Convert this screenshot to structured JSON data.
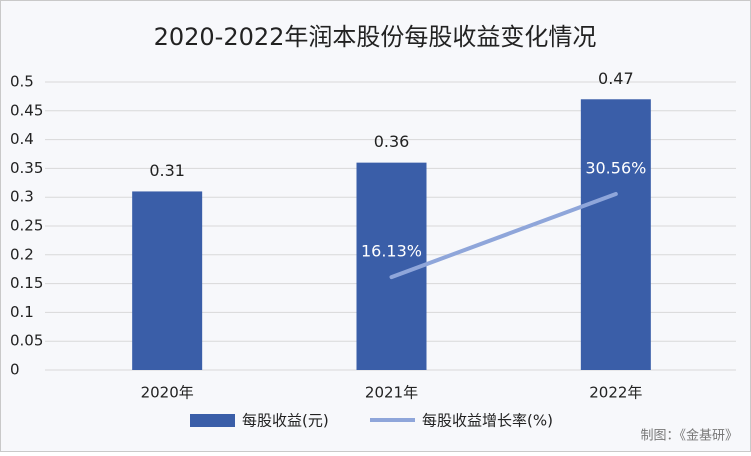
{
  "chart_data": {
    "type": "bar_line",
    "title": "2020-2022年润本股份每股收益变化情况",
    "categories": [
      "2020年",
      "2021年",
      "2022年"
    ],
    "series": [
      {
        "name": "每股收益(元)",
        "type": "bar",
        "color": "#3a5ea8",
        "values": [
          0.31,
          0.36,
          0.47
        ]
      },
      {
        "name": "每股收益增长率(%)",
        "type": "line",
        "axis": "y2",
        "color": "#8fa6da",
        "values": [
          null,
          16.13,
          30.56
        ],
        "value_labels": [
          null,
          "16.13%",
          "30.56%"
        ]
      }
    ],
    "ylim": [
      0,
      0.5
    ],
    "yticks": [
      0,
      0.05,
      0.1,
      0.15,
      0.2,
      0.25,
      0.3,
      0.35,
      0.4,
      0.45,
      0.5
    ],
    "y2lim": [
      0,
      50
    ],
    "grid": true,
    "legend": "bottom",
    "source": "制图：《金基研》"
  }
}
